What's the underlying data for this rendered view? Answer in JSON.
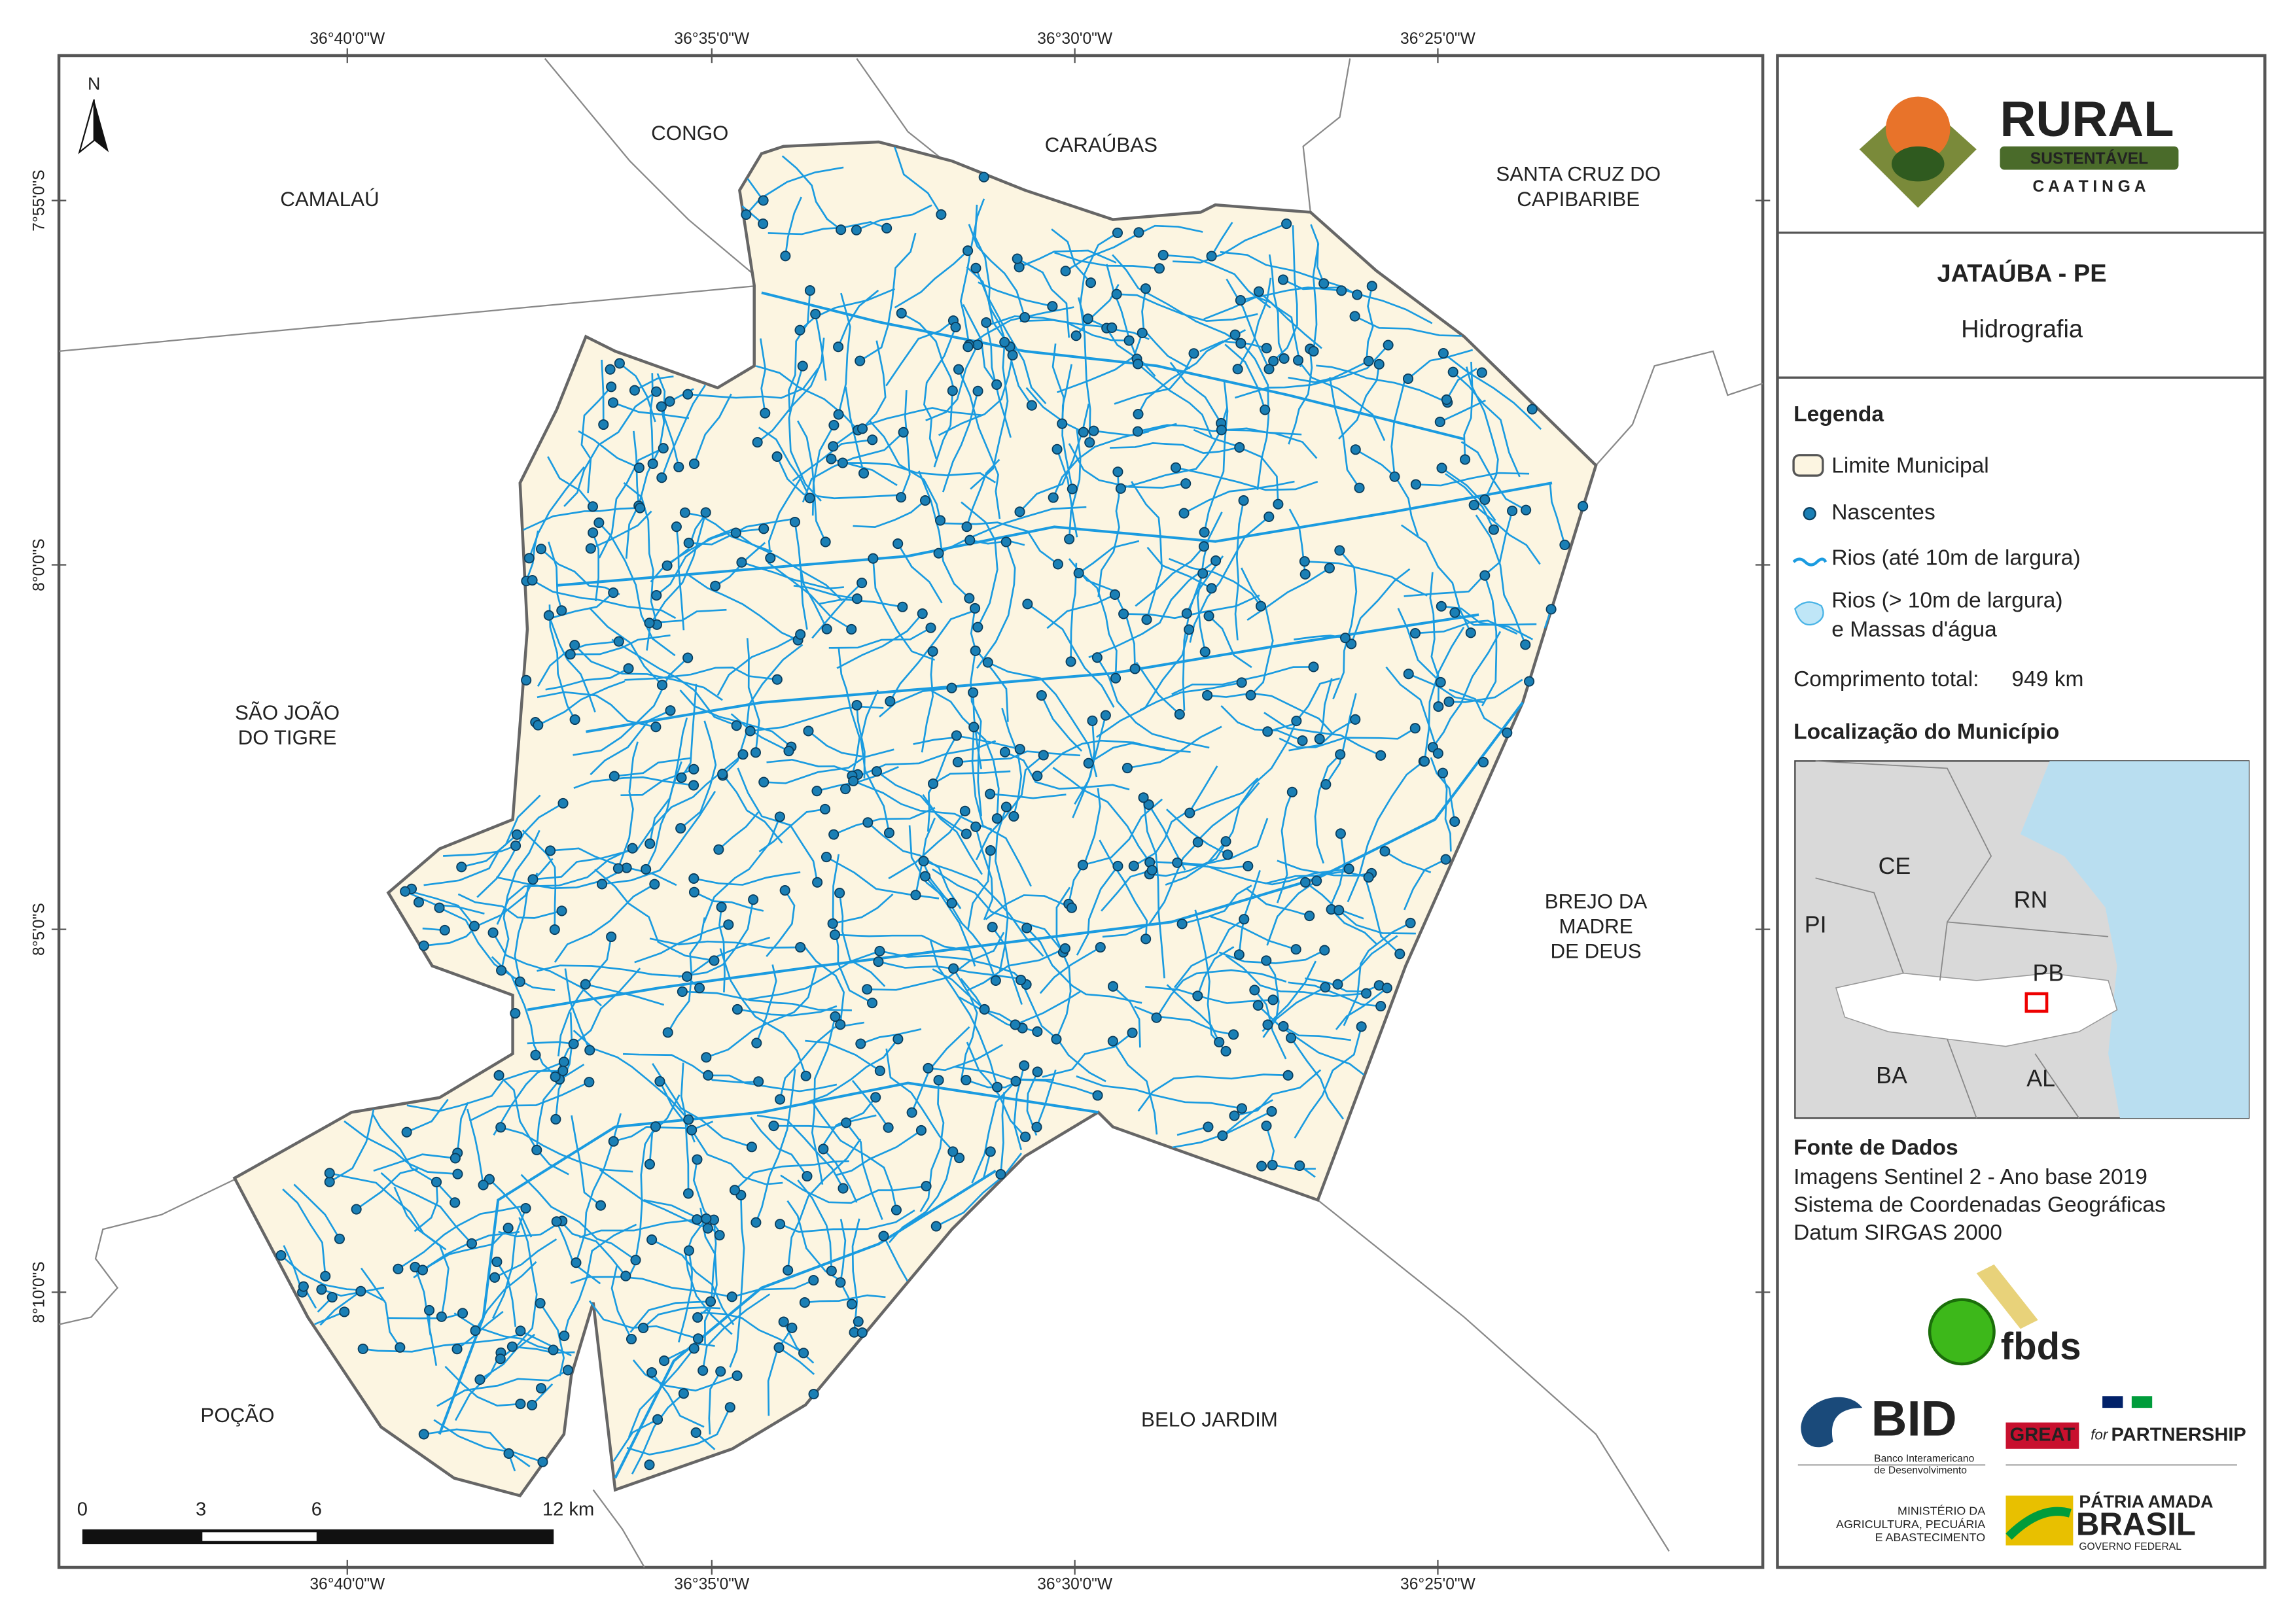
{
  "map": {
    "north": "N",
    "places": [
      [
        "CAMALAÚ"
      ],
      [
        "CONGO"
      ],
      [
        "CARAÚBAS"
      ],
      [
        "SANTA CRUZ DO",
        "CAPIBARIBE"
      ],
      [
        "SÃO JOÃO",
        "DO TIGRE"
      ],
      [
        "BREJO DA",
        "MADRE",
        "DE DEUS"
      ],
      [
        "POÇÃO"
      ],
      [
        "BELO JARDIM"
      ]
    ],
    "coords_x": [
      "36°40'0\"W",
      "36°35'0\"W",
      "36°30'0\"W",
      "36°25'0\"W"
    ],
    "coords_y": [
      "7°55'0\"S",
      "8°0'0\"S",
      "8°5'0\"S",
      "8°10'0\"S"
    ],
    "scale": [
      "0",
      "3",
      "6",
      "12 km"
    ]
  },
  "panel": {
    "logo": {
      "rural": "RURAL",
      "sustentavel": "SUSTENTÁVEL",
      "caatinga": "C A A T I N G A"
    },
    "title": "JATAÚBA - PE",
    "subtitle": "Hidrografia",
    "legend": {
      "title": "Legenda",
      "items": [
        "Limite Municipal",
        "Nascentes",
        "Rios (até 10m de largura)",
        "Rios (> 10m de largura)",
        "e Massas d'água"
      ]
    },
    "length_label": "Comprimento total:",
    "length": "949 km",
    "location_title": "Localização do Município",
    "states": [
      "CE",
      "RN",
      "PI",
      "PB",
      "BA",
      "AL"
    ],
    "sources": {
      "title": "Fonte de Dados",
      "lines": [
        "Imagens Sentinel 2 - Ano base 2019",
        "Sistema de Coordenadas Geográficas",
        "Datum SIRGAS 2000"
      ]
    },
    "partners": {
      "fbds": "fbds",
      "bid": "BID",
      "bid_name": [
        "Banco Interamericano",
        "de Desenvolvimento"
      ],
      "great": "GREAT",
      "for": "for",
      "partnership": "PARTNERSHIP",
      "ministry": [
        "MINISTÉRIO DA",
        "AGRICULTURA, PECUÁRIA",
        "E ABASTECIMENTO"
      ],
      "patria": "PÁTRIA AMADA",
      "brasil": "BRASIL",
      "gov": "GOVERNO FEDERAL"
    }
  }
}
